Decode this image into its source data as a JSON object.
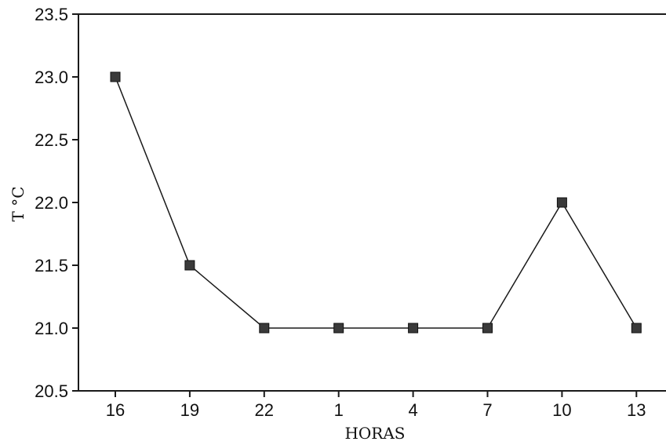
{
  "chart_data": {
    "type": "line",
    "title": "",
    "xlabel": "HORAS",
    "ylabel": "T °C",
    "categories": [
      "16",
      "19",
      "22",
      "1",
      "4",
      "7",
      "10",
      "13"
    ],
    "series": [
      {
        "values": [
          23.0,
          21.5,
          21.0,
          21.0,
          21.0,
          21.0,
          22.0,
          21.0
        ]
      }
    ],
    "ylim": [
      20.5,
      23.5
    ],
    "yticks": [
      "20.5",
      "21.0",
      "21.5",
      "22.0",
      "22.5",
      "23.0",
      "23.5"
    ],
    "grid": false,
    "legend": "none",
    "marker": "square",
    "colors": {
      "line": "#1a1a1a",
      "marker": "#3a3a3a",
      "axis": "#1a1a1a"
    }
  }
}
